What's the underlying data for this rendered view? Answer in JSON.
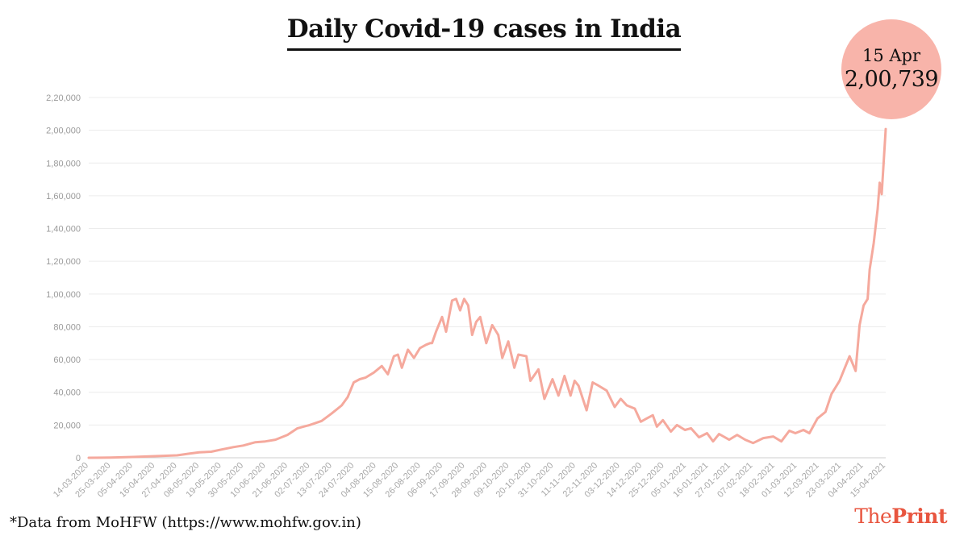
{
  "title": "Daily Covid-19 cases in India",
  "callout": {
    "date": "15 Apr",
    "value": "2,00,739",
    "color": "#f8b4aa"
  },
  "source": "*Data from MoHFW (https://www.mohfw.gov.in)",
  "brand": {
    "part1": "The",
    "part2": "Print",
    "color": "#e8553f"
  },
  "chart_data": {
    "type": "line",
    "title": "Daily Covid-19 cases in India",
    "xlabel": "",
    "ylabel": "",
    "ylim": [
      0,
      220000
    ],
    "y_ticks": [
      0,
      20000,
      40000,
      60000,
      80000,
      100000,
      120000,
      140000,
      160000,
      180000,
      200000,
      220000
    ],
    "y_tick_labels": [
      "0",
      "20,000",
      "40,000",
      "60,000",
      "80,000",
      "1,00,000",
      "1,20,000",
      "1,40,000",
      "1,60,000",
      "1,80,000",
      "2,00,000",
      "2,20,000"
    ],
    "x_tick_labels": [
      "14-03-2020",
      "25-03-2020",
      "05-04-2020",
      "16-04-2020",
      "27-04-2020",
      "08-05-2020",
      "19-05-2020",
      "30-05-2020",
      "10-06-2020",
      "21-06-2020",
      "02-07-2020",
      "13-07-2020",
      "24-07-2020",
      "04-08-2020",
      "15-08-2020",
      "26-08-2020",
      "06-09-2020",
      "17-09-2020",
      "28-09-2020",
      "09-10-2020",
      "20-10-2020",
      "31-10-2020",
      "11-11-2020",
      "22-11-2020",
      "03-12-2020",
      "14-12-2020",
      "25-12-2020",
      "05-01-2021",
      "16-01-2021",
      "27-01-2021",
      "07-02-2021",
      "18-02-2021",
      "01-03-2021",
      "12-03-2021",
      "23-03-2021",
      "04-04-2021",
      "15-04-2021"
    ],
    "x_start": "2020-03-14",
    "x_end": "2021-04-15",
    "grid": true,
    "line_color": "#f5a99d",
    "series": [
      {
        "name": "",
        "points": [
          [
            "2020-03-14",
            0
          ],
          [
            "2020-03-25",
            100
          ],
          [
            "2020-04-05",
            500
          ],
          [
            "2020-04-16",
            1000
          ],
          [
            "2020-04-27",
            1500
          ],
          [
            "2020-05-03",
            2500
          ],
          [
            "2020-05-08",
            3300
          ],
          [
            "2020-05-14",
            3700
          ],
          [
            "2020-05-19",
            5000
          ],
          [
            "2020-05-25",
            6500
          ],
          [
            "2020-05-30",
            7500
          ],
          [
            "2020-06-05",
            9500
          ],
          [
            "2020-06-10",
            10000
          ],
          [
            "2020-06-15",
            11000
          ],
          [
            "2020-06-21",
            14000
          ],
          [
            "2020-06-26",
            18000
          ],
          [
            "2020-07-02",
            20000
          ],
          [
            "2020-07-08",
            22500
          ],
          [
            "2020-07-13",
            27000
          ],
          [
            "2020-07-18",
            32000
          ],
          [
            "2020-07-21",
            37000
          ],
          [
            "2020-07-24",
            46000
          ],
          [
            "2020-07-27",
            48000
          ],
          [
            "2020-07-30",
            49000
          ],
          [
            "2020-08-03",
            52000
          ],
          [
            "2020-08-07",
            56000
          ],
          [
            "2020-08-10",
            51000
          ],
          [
            "2020-08-13",
            62000
          ],
          [
            "2020-08-15",
            63000
          ],
          [
            "2020-08-17",
            55000
          ],
          [
            "2020-08-20",
            66000
          ],
          [
            "2020-08-23",
            61000
          ],
          [
            "2020-08-26",
            67000
          ],
          [
            "2020-08-29",
            69000
          ],
          [
            "2020-08-31",
            70000
          ],
          [
            "2020-09-01",
            70000
          ],
          [
            "2020-09-03",
            77000
          ],
          [
            "2020-09-06",
            86000
          ],
          [
            "2020-09-08",
            77000
          ],
          [
            "2020-09-11",
            96000
          ],
          [
            "2020-09-13",
            97000
          ],
          [
            "2020-09-15",
            90000
          ],
          [
            "2020-09-17",
            97000
          ],
          [
            "2020-09-19",
            93000
          ],
          [
            "2020-09-21",
            75000
          ],
          [
            "2020-09-23",
            83000
          ],
          [
            "2020-09-25",
            86000
          ],
          [
            "2020-09-28",
            70000
          ],
          [
            "2020-10-01",
            81000
          ],
          [
            "2020-10-04",
            75000
          ],
          [
            "2020-10-06",
            61000
          ],
          [
            "2020-10-09",
            71000
          ],
          [
            "2020-10-12",
            55000
          ],
          [
            "2020-10-14",
            63000
          ],
          [
            "2020-10-18",
            62000
          ],
          [
            "2020-10-20",
            47000
          ],
          [
            "2020-10-24",
            54000
          ],
          [
            "2020-10-27",
            36000
          ],
          [
            "2020-10-31",
            48000
          ],
          [
            "2020-11-03",
            38000
          ],
          [
            "2020-11-06",
            50000
          ],
          [
            "2020-11-09",
            38000
          ],
          [
            "2020-11-11",
            47000
          ],
          [
            "2020-11-13",
            44000
          ],
          [
            "2020-11-17",
            29000
          ],
          [
            "2020-11-20",
            46000
          ],
          [
            "2020-11-23",
            44000
          ],
          [
            "2020-11-27",
            41000
          ],
          [
            "2020-12-01",
            31000
          ],
          [
            "2020-12-04",
            36000
          ],
          [
            "2020-12-07",
            32000
          ],
          [
            "2020-12-11",
            30000
          ],
          [
            "2020-12-14",
            22000
          ],
          [
            "2020-12-17",
            24000
          ],
          [
            "2020-12-20",
            26000
          ],
          [
            "2020-12-22",
            19000
          ],
          [
            "2020-12-25",
            23000
          ],
          [
            "2020-12-29",
            16000
          ],
          [
            "2021-01-01",
            20000
          ],
          [
            "2021-01-05",
            17000
          ],
          [
            "2021-01-08",
            18000
          ],
          [
            "2021-01-12",
            12500
          ],
          [
            "2021-01-16",
            15000
          ],
          [
            "2021-01-19",
            10000
          ],
          [
            "2021-01-22",
            14500
          ],
          [
            "2021-01-27",
            11000
          ],
          [
            "2021-01-31",
            14000
          ],
          [
            "2021-02-04",
            11000
          ],
          [
            "2021-02-08",
            9000
          ],
          [
            "2021-02-13",
            12000
          ],
          [
            "2021-02-18",
            13000
          ],
          [
            "2021-02-22",
            10000
          ],
          [
            "2021-02-26",
            16500
          ],
          [
            "2021-03-01",
            15000
          ],
          [
            "2021-03-05",
            17000
          ],
          [
            "2021-03-08",
            15000
          ],
          [
            "2021-03-12",
            24000
          ],
          [
            "2021-03-16",
            28000
          ],
          [
            "2021-03-19",
            39000
          ],
          [
            "2021-03-23",
            47000
          ],
          [
            "2021-03-25",
            53000
          ],
          [
            "2021-03-28",
            62000
          ],
          [
            "2021-03-31",
            53000
          ],
          [
            "2021-04-02",
            81000
          ],
          [
            "2021-04-04",
            93000
          ],
          [
            "2021-04-06",
            97000
          ],
          [
            "2021-04-07",
            115000
          ],
          [
            "2021-04-09",
            131000
          ],
          [
            "2021-04-11",
            152000
          ],
          [
            "2021-04-12",
            168000
          ],
          [
            "2021-04-13",
            161000
          ],
          [
            "2021-04-15",
            200739
          ]
        ]
      }
    ],
    "annotations": [
      {
        "x": "2021-04-15",
        "text": "15 Apr 2,00,739"
      }
    ]
  }
}
